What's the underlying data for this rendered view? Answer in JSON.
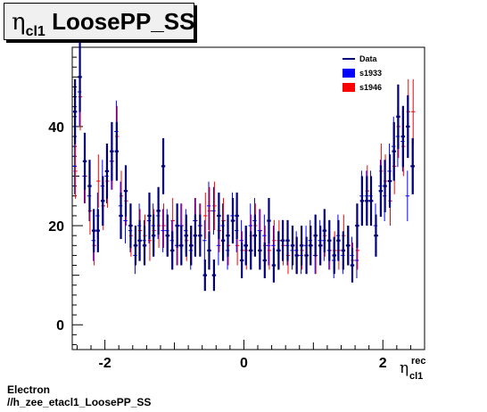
{
  "title": {
    "symbol": "η",
    "sub": "cl1",
    "text": "LoosePP_SS"
  },
  "footer": {
    "line1": "Electron",
    "line2": "//h_zee_etacl1_LoosePP_SS"
  },
  "xlabel": {
    "symbol": "η",
    "sup": "rec",
    "sub": "cl1"
  },
  "chart_data": {
    "type": "scatter",
    "xlim": [
      -2.47,
      2.6
    ],
    "ylim": [
      -5,
      56
    ],
    "xticks": [
      "-2",
      "0",
      "2"
    ],
    "yticks": [
      "0",
      "20",
      "40"
    ],
    "legend_position": "top-right",
    "x": [
      -2.43,
      -2.36,
      -2.29,
      -2.22,
      -2.16,
      -2.1,
      -2.03,
      -1.97,
      -1.9,
      -1.83,
      -1.77,
      -1.7,
      -1.63,
      -1.56,
      -1.5,
      -1.43,
      -1.36,
      -1.3,
      -1.23,
      -1.16,
      -1.1,
      -1.03,
      -0.96,
      -0.9,
      -0.83,
      -0.76,
      -0.7,
      -0.63,
      -0.56,
      -0.5,
      -0.43,
      -0.36,
      -0.3,
      -0.23,
      -0.16,
      -0.1,
      -0.03,
      0.03,
      0.1,
      0.16,
      0.23,
      0.3,
      0.36,
      0.43,
      0.5,
      0.56,
      0.63,
      0.7,
      0.76,
      0.83,
      0.9,
      0.96,
      1.03,
      1.1,
      1.16,
      1.23,
      1.3,
      1.36,
      1.43,
      1.5,
      1.56,
      1.63,
      1.7,
      1.77,
      1.83,
      1.9,
      1.97,
      2.03,
      2.1,
      2.16,
      2.22,
      2.29,
      2.36,
      2.43
    ],
    "series": [
      {
        "name": "Data",
        "color": "#00007a",
        "values": [
          43,
          50,
          33,
          28,
          19,
          19,
          25,
          31,
          35,
          35,
          22,
          27,
          20,
          16,
          17,
          16,
          22,
          18,
          23,
          32,
          18,
          15,
          20,
          16,
          18,
          16,
          18,
          18,
          10,
          15,
          10,
          22,
          17,
          18,
          21,
          22,
          13,
          16,
          15,
          18,
          15,
          13,
          21,
          12,
          15,
          17,
          17,
          16,
          14,
          16,
          14,
          16,
          18,
          16,
          19,
          17,
          14,
          17,
          15,
          16,
          12,
          20,
          25,
          25,
          25,
          18,
          27,
          28,
          29,
          35,
          42,
          38,
          40,
          32
        ]
      },
      {
        "name": "s1933",
        "color": "#0000ff",
        "values": [
          32,
          47,
          30,
          26,
          17,
          22,
          28,
          30,
          33,
          39,
          24,
          21,
          19,
          14,
          20,
          17,
          21,
          20,
          22,
          19,
          19,
          17,
          16,
          20,
          19,
          15,
          21,
          20,
          17,
          24,
          23,
          16,
          20,
          15,
          22,
          19,
          17,
          16,
          20,
          21,
          19,
          18,
          16,
          16,
          15,
          17,
          16,
          15,
          15,
          14,
          16,
          17,
          14,
          17,
          17,
          15,
          13,
          18,
          14,
          16,
          14,
          13,
          26,
          26,
          26,
          20,
          28,
          26,
          31,
          36,
          38,
          37,
          26,
          32
        ]
      },
      {
        "name": "s1946",
        "color": "#ff0000",
        "values": [
          31,
          46,
          30,
          23,
          16,
          29,
          24,
          29,
          33,
          38,
          26,
          25,
          18,
          16,
          19,
          18,
          17,
          19,
          20,
          20,
          18,
          21,
          16,
          20,
          17,
          16,
          21,
          20,
          22,
          23,
          24,
          19,
          21,
          16,
          21,
          16,
          15,
          15,
          18,
          20,
          19,
          16,
          15,
          17,
          17,
          16,
          14,
          16,
          14,
          15,
          14,
          16,
          14,
          16,
          18,
          15,
          15,
          15,
          18,
          16,
          13,
          15,
          25,
          27,
          25,
          18,
          31,
          29,
          25,
          32,
          40,
          36,
          43,
          43
        ]
      }
    ]
  }
}
